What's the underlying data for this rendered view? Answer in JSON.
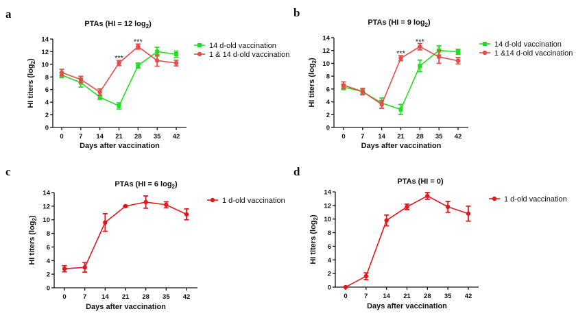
{
  "chart_data": [
    {
      "panel": "a",
      "type": "line",
      "title": "PTAs (HI = 12 log",
      "title_subscript": "2",
      "title_suffix": ")",
      "xlabel": "Days after vaccination",
      "ylabel": "HI titers (log",
      "ylabel_subscript": "2",
      "ylabel_suffix": ")",
      "x": [
        0,
        7,
        14,
        21,
        28,
        35,
        42
      ],
      "xticks": [
        "0",
        "7",
        "14",
        "21",
        "28",
        "35",
        "42"
      ],
      "yticks": [
        "0",
        "2",
        "4",
        "6",
        "8",
        "10",
        "12",
        "14"
      ],
      "ylim": [
        0,
        14
      ],
      "legend_position": "right",
      "grid": false,
      "series": [
        {
          "name": "14 d-old vaccination",
          "color": "#22dd22",
          "marker": "square",
          "values": [
            8.3,
            7.1,
            4.8,
            3.4,
            9.8,
            12.0,
            11.6
          ],
          "errors": [
            0.4,
            0.7,
            0.35,
            0.5,
            0.4,
            0.7,
            0.5
          ]
        },
        {
          "name": "1 & 14 d-old vaccination",
          "color": "#e84a4a",
          "marker": "circle",
          "values": [
            8.7,
            7.6,
            5.6,
            10.2,
            12.8,
            10.6,
            10.2
          ],
          "errors": [
            0.5,
            0.5,
            0.5,
            0.4,
            0.4,
            0.9,
            0.45
          ]
        }
      ],
      "annotations": [
        {
          "text": "***",
          "x": 21,
          "y": 11.0
        },
        {
          "text": "***",
          "x": 28,
          "y": 13.6
        }
      ]
    },
    {
      "panel": "b",
      "type": "line",
      "title": "PTAs (HI = 9 log",
      "title_subscript": "2",
      "title_suffix": ")",
      "xlabel": "Days after vaccination",
      "ylabel": "HI titers (log",
      "ylabel_subscript": "2",
      "ylabel_suffix": ")",
      "x": [
        0,
        7,
        14,
        21,
        28,
        35,
        42
      ],
      "xticks": [
        "0",
        "7",
        "14",
        "21",
        "28",
        "35",
        "42"
      ],
      "yticks": [
        "0",
        "2",
        "4",
        "6",
        "8",
        "10",
        "12",
        "14"
      ],
      "ylim": [
        0,
        14
      ],
      "legend_position": "right",
      "grid": false,
      "series": [
        {
          "name": "14 d-old vaccination",
          "color": "#22dd22",
          "marker": "square",
          "values": [
            6.3,
            5.6,
            3.8,
            2.8,
            9.6,
            12.0,
            11.8
          ],
          "errors": [
            0.4,
            0.4,
            0.8,
            0.8,
            0.9,
            0.7,
            0.4
          ]
        },
        {
          "name": "1 &14 d-old vaccination",
          "color": "#e84a4a",
          "marker": "circle",
          "values": [
            6.6,
            5.6,
            3.6,
            10.8,
            12.6,
            11.0,
            10.4
          ],
          "errors": [
            0.5,
            0.5,
            0.6,
            0.4,
            0.5,
            1.0,
            0.5
          ]
        }
      ],
      "annotations": [
        {
          "text": "***",
          "x": 21,
          "y": 11.6
        },
        {
          "text": "***",
          "x": 28,
          "y": 13.4
        }
      ]
    },
    {
      "panel": "c",
      "type": "line",
      "title": "PTAs (HI = 6 log",
      "title_subscript": "2",
      "title_suffix": ")",
      "xlabel": "Days after vaccination",
      "ylabel": "HI titers (log",
      "ylabel_subscript": "2",
      "ylabel_suffix": ")",
      "x": [
        0,
        7,
        14,
        21,
        28,
        35,
        42
      ],
      "xticks": [
        "0",
        "7",
        "14",
        "21",
        "28",
        "35",
        "42"
      ],
      "yticks": [
        "0",
        "2",
        "4",
        "6",
        "8",
        "10",
        "12",
        "14"
      ],
      "ylim": [
        0,
        14
      ],
      "legend_position": "right",
      "grid": false,
      "series": [
        {
          "name": "1 d-old vaccination",
          "color": "#e3161b",
          "marker": "circle",
          "values": [
            2.8,
            3.0,
            9.6,
            12.0,
            12.6,
            12.2,
            10.8
          ],
          "errors": [
            0.45,
            0.7,
            1.3,
            0.1,
            0.9,
            0.45,
            0.8
          ]
        }
      ],
      "annotations": []
    },
    {
      "panel": "d",
      "type": "line",
      "title": "PTAs (HI = 0)",
      "title_subscript": "",
      "title_suffix": "",
      "xlabel": "Days after vaccination",
      "ylabel": "HI titers (log",
      "ylabel_subscript": "2",
      "ylabel_suffix": ")",
      "x": [
        0,
        7,
        14,
        21,
        28,
        35,
        42
      ],
      "xticks": [
        "0",
        "7",
        "14",
        "21",
        "28",
        "35",
        "42"
      ],
      "yticks": [
        "0",
        "2",
        "4",
        "6",
        "8",
        "10",
        "12",
        "14"
      ],
      "ylim": [
        0,
        14
      ],
      "legend_position": "right",
      "grid": false,
      "series": [
        {
          "name": "1 d-old vaccination",
          "color": "#e3161b",
          "marker": "circle",
          "values": [
            0.0,
            1.6,
            9.8,
            11.8,
            13.4,
            11.8,
            10.8
          ],
          "errors": [
            0.05,
            0.5,
            0.8,
            0.4,
            0.5,
            0.8,
            1.1
          ]
        }
      ],
      "annotations": []
    }
  ]
}
